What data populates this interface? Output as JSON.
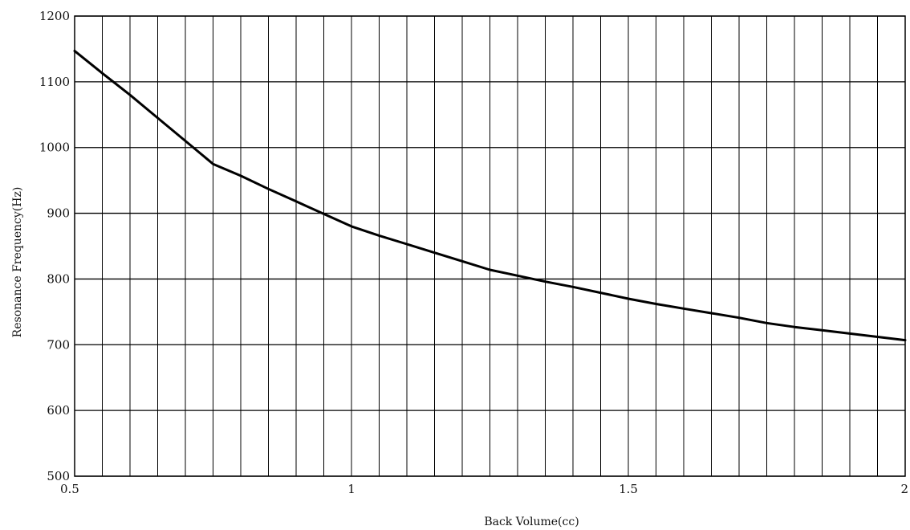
{
  "chart_data": {
    "type": "line",
    "xlabel": "Back Volume(cc)",
    "ylabel": "Resonance Frequency(Hz)",
    "xlim": [
      0.5,
      2
    ],
    "ylim": [
      500,
      1200
    ],
    "x_ticks": [
      0.5,
      1,
      1.5,
      2
    ],
    "x_tick_labels": [
      "0.5",
      "1",
      "1.5",
      "2"
    ],
    "y_ticks": [
      500,
      600,
      700,
      800,
      900,
      1000,
      1100,
      1200
    ],
    "y_tick_labels": [
      "500",
      "600",
      "700",
      "800",
      "900",
      "1000",
      "1100",
      "1200"
    ],
    "x_minor_step": 0.05,
    "grid": true,
    "series": [
      {
        "x": [
          0.5,
          0.55,
          0.6,
          0.65,
          0.7,
          0.75,
          0.8,
          0.85,
          0.9,
          0.95,
          1.0,
          1.05,
          1.1,
          1.15,
          1.2,
          1.25,
          1.3,
          1.35,
          1.4,
          1.45,
          1.5,
          1.55,
          1.6,
          1.65,
          1.7,
          1.75,
          1.8,
          1.85,
          1.9,
          1.95,
          2.0
        ],
        "values": [
          1147,
          1113,
          1080,
          1045,
          1010,
          975,
          957,
          937,
          918,
          899,
          880,
          866,
          853,
          840,
          827,
          814,
          805,
          796,
          788,
          779,
          770,
          762,
          755,
          748,
          741,
          733,
          727,
          722,
          717,
          712,
          707
        ]
      }
    ]
  }
}
